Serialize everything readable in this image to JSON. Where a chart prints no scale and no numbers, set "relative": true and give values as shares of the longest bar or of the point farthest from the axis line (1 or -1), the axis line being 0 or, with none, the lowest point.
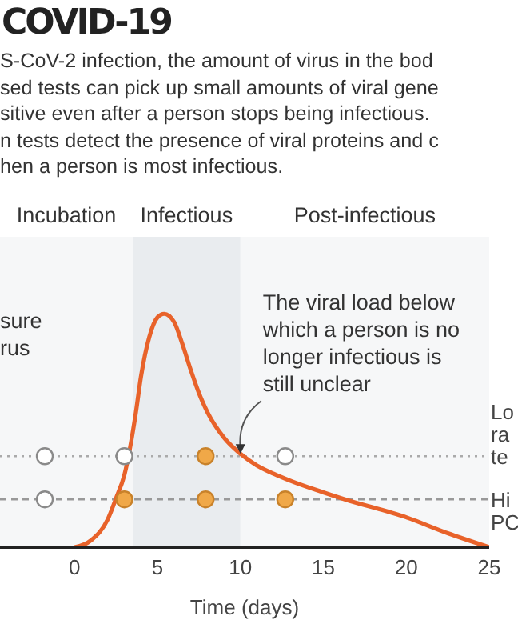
{
  "chart_data": {
    "type": "line",
    "title": "COVID-19",
    "subtitle": "S-CoV-2 infection, the amount of virus in the bod\nsed tests can pick up small amounts of viral gene\nsitive even after a person stops being infectious.\nn tests detect the presence of viral proteins and c\nhen a person is most infectious.",
    "xlabel": "Time (days)",
    "relative": true,
    "xlim": [
      -4.5,
      25
    ],
    "xticks": [
      0,
      5,
      10,
      15,
      20,
      25
    ],
    "series": [
      {
        "color": "#e8622a",
        "x": [
          0,
          1,
          2,
          2.5,
          3,
          3.7,
          4,
          4.5,
          5,
          5.4,
          6,
          6.5,
          7,
          7.5,
          8,
          9,
          10,
          11,
          12,
          13,
          15,
          16.3,
          20,
          22.5,
          25
        ],
        "values": [
          0,
          0.03,
          0.12,
          0.21,
          0.31,
          0.58,
          0.73,
          0.9,
          0.985,
          1,
          0.965,
          0.87,
          0.76,
          0.66,
          0.58,
          0.47,
          0.4,
          0.35,
          0.315,
          0.285,
          0.235,
          0.205,
          0.128,
          0.06,
          0
        ]
      },
      {
        "type": "scatter",
        "x": [
          -1.8,
          3,
          7.9,
          12.7
        ],
        "values": [
          0.39,
          0.39,
          0.39,
          0.39
        ],
        "colors": [
          "#ffffff",
          "#ffffff",
          "#f0a848",
          "#ffffff"
        ]
      },
      {
        "type": "scatter",
        "x": [
          -1.8,
          3,
          7.9,
          12.7
        ],
        "values": [
          0.205,
          0.205,
          0.205,
          0.205
        ],
        "colors": [
          "#ffffff",
          "#f0a848",
          "#f0a848",
          "#f0a848"
        ]
      }
    ],
    "bands": [
      {
        "axis": "x",
        "from": -4.5,
        "to": 3.5,
        "label": "Incubation",
        "color": "#f6f7f8"
      },
      {
        "axis": "x",
        "from": 3.5,
        "to": 10,
        "label": "Infectious",
        "color": "#e9ecef"
      },
      {
        "axis": "x",
        "from": 10,
        "to": 25,
        "label": "Post-infectious",
        "color": "#f6f7f8"
      }
    ],
    "ref_lines": [
      {
        "axis": "y",
        "value": 0.39,
        "label": "Lo\nra\nte",
        "color": "#aaaaaa",
        "line_style": "dotted"
      },
      {
        "axis": "y",
        "value": 0.205,
        "label": "Hi\nPC",
        "color": "#999999",
        "line_style": "dashed"
      }
    ],
    "annotations": [
      "sure\nrus",
      {
        "text": "The viral load below which a person is no longer infectious is still unclear",
        "x": 10,
        "y": 0.4
      }
    ]
  }
}
